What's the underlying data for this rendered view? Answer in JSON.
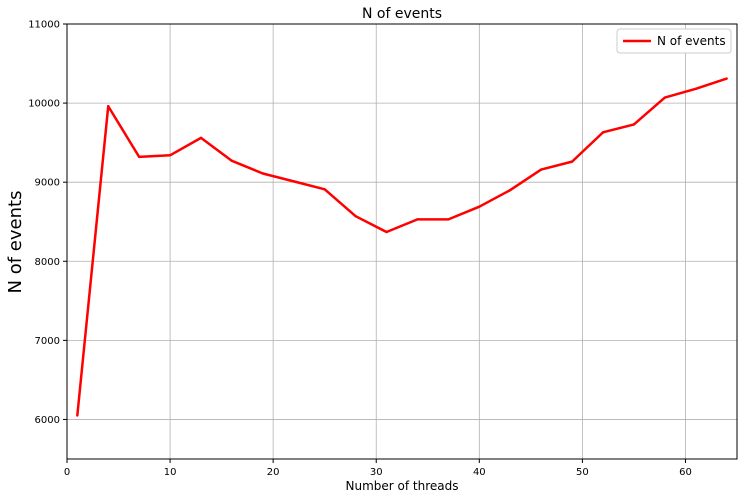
{
  "chart_data": {
    "type": "line",
    "title": "N of events",
    "xlabel": "Number of threads",
    "ylabel": "N of events",
    "xlim": [
      0,
      65
    ],
    "ylim": [
      5500,
      11000
    ],
    "xticks": [
      0,
      10,
      20,
      30,
      40,
      50,
      60
    ],
    "yticks": [
      6000,
      7000,
      8000,
      9000,
      10000,
      11000
    ],
    "grid": true,
    "legend_position": "top-right",
    "series": [
      {
        "name": "N of events",
        "color": "#ff0000",
        "x": [
          1,
          4,
          7,
          10,
          13,
          16,
          19,
          22,
          25,
          28,
          31,
          34,
          37,
          40,
          43,
          46,
          49,
          52,
          55,
          58,
          61,
          64
        ],
        "y": [
          6050,
          9960,
          9320,
          9340,
          9560,
          9270,
          9110,
          9010,
          8910,
          8570,
          8370,
          8530,
          8530,
          8690,
          8900,
          9160,
          9260,
          9630,
          9730,
          10070,
          10180,
          10310
        ]
      }
    ]
  }
}
